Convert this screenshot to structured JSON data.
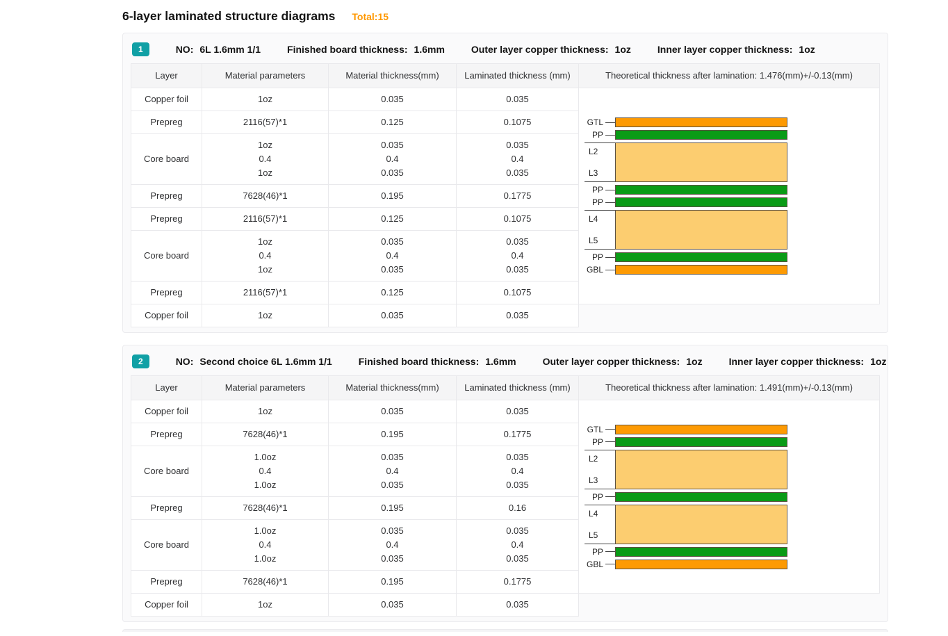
{
  "page": {
    "title": "6-layer laminated structure diagrams",
    "total_label": "Total:15"
  },
  "colors": {
    "accent_orange": "#ff9800",
    "badge_teal": "#10a0a5",
    "copper_bar": "#fd9a03",
    "prepreg_bar": "#0a9b16",
    "core_bar": "#fccd70"
  },
  "cards": [
    {
      "index": "1",
      "fields": [
        {
          "label": "NO:",
          "value": "6L 1.6mm 1/1"
        },
        {
          "label": "Finished board thickness:",
          "value": "1.6mm"
        },
        {
          "label": "Outer layer copper thickness:",
          "value": "1oz"
        },
        {
          "label": "Inner layer copper thickness:",
          "value": "1oz"
        }
      ],
      "columns": [
        "Layer",
        "Material parameters",
        "Material thickness(mm)",
        "Laminated thickness (mm)"
      ],
      "theoretical_header": "Theoretical thickness after lamination: 1.476(mm)+/-0.13(mm)",
      "rows": [
        {
          "layer": "Copper foil",
          "params": [
            "1oz"
          ],
          "material": [
            "0.035"
          ],
          "laminated": [
            "0.035"
          ]
        },
        {
          "layer": "Prepreg",
          "params": [
            "2116(57)*1"
          ],
          "material": [
            "0.125"
          ],
          "laminated": [
            "0.1075"
          ]
        },
        {
          "layer": "Core board",
          "params": [
            "1oz",
            "0.4",
            "1oz"
          ],
          "material": [
            "0.035",
            "0.4",
            "0.035"
          ],
          "laminated": [
            "0.035",
            "0.4",
            "0.035"
          ]
        },
        {
          "layer": "Prepreg",
          "params": [
            "7628(46)*1"
          ],
          "material": [
            "0.195"
          ],
          "laminated": [
            "0.1775"
          ]
        },
        {
          "layer": "Prepreg",
          "params": [
            "2116(57)*1"
          ],
          "material": [
            "0.125"
          ],
          "laminated": [
            "0.1075"
          ]
        },
        {
          "layer": "Core board",
          "params": [
            "1oz",
            "0.4",
            "1oz"
          ],
          "material": [
            "0.035",
            "0.4",
            "0.035"
          ],
          "laminated": [
            "0.035",
            "0.4",
            "0.035"
          ]
        },
        {
          "layer": "Prepreg",
          "params": [
            "2116(57)*1"
          ],
          "material": [
            "0.125"
          ],
          "laminated": [
            "0.1075"
          ]
        },
        {
          "layer": "Copper foil",
          "params": [
            "1oz"
          ],
          "material": [
            "0.035"
          ],
          "laminated": [
            "0.035"
          ]
        }
      ],
      "stack": [
        {
          "type": "copper",
          "label": "GTL"
        },
        {
          "type": "prepreg",
          "label": "PP"
        },
        {
          "type": "core",
          "top_label": "L2",
          "bottom_label": "L3"
        },
        {
          "type": "prepreg",
          "label": "PP"
        },
        {
          "type": "prepreg",
          "label": "PP"
        },
        {
          "type": "core",
          "top_label": "L4",
          "bottom_label": "L5"
        },
        {
          "type": "prepreg",
          "label": "PP"
        },
        {
          "type": "copper",
          "label": "GBL"
        }
      ]
    },
    {
      "index": "2",
      "fields": [
        {
          "label": "NO:",
          "value": "Second choice 6L 1.6mm 1/1"
        },
        {
          "label": "Finished board thickness:",
          "value": "1.6mm"
        },
        {
          "label": "Outer layer copper thickness:",
          "value": "1oz"
        },
        {
          "label": "Inner layer copper thickness:",
          "value": "1oz"
        }
      ],
      "columns": [
        "Layer",
        "Material parameters",
        "Material thickness(mm)",
        "Laminated thickness (mm)"
      ],
      "theoretical_header": "Theoretical thickness after lamination: 1.491(mm)+/-0.13(mm)",
      "rows": [
        {
          "layer": "Copper foil",
          "params": [
            "1oz"
          ],
          "material": [
            "0.035"
          ],
          "laminated": [
            "0.035"
          ]
        },
        {
          "layer": "Prepreg",
          "params": [
            "7628(46)*1"
          ],
          "material": [
            "0.195"
          ],
          "laminated": [
            "0.1775"
          ]
        },
        {
          "layer": "Core board",
          "params": [
            "1.0oz",
            "0.4",
            "1.0oz"
          ],
          "material": [
            "0.035",
            "0.4",
            "0.035"
          ],
          "laminated": [
            "0.035",
            "0.4",
            "0.035"
          ]
        },
        {
          "layer": "Prepreg",
          "params": [
            "7628(46)*1"
          ],
          "material": [
            "0.195"
          ],
          "laminated": [
            "0.16"
          ]
        },
        {
          "layer": "Core board",
          "params": [
            "1.0oz",
            "0.4",
            "1.0oz"
          ],
          "material": [
            "0.035",
            "0.4",
            "0.035"
          ],
          "laminated": [
            "0.035",
            "0.4",
            "0.035"
          ]
        },
        {
          "layer": "Prepreg",
          "params": [
            "7628(46)*1"
          ],
          "material": [
            "0.195"
          ],
          "laminated": [
            "0.1775"
          ]
        },
        {
          "layer": "Copper foil",
          "params": [
            "1oz"
          ],
          "material": [
            "0.035"
          ],
          "laminated": [
            "0.035"
          ]
        }
      ],
      "stack": [
        {
          "type": "copper",
          "label": "GTL"
        },
        {
          "type": "prepreg",
          "label": "PP"
        },
        {
          "type": "core",
          "top_label": "L2",
          "bottom_label": "L3"
        },
        {
          "type": "prepreg",
          "label": "PP"
        },
        {
          "type": "core",
          "top_label": "L4",
          "bottom_label": "L5"
        },
        {
          "type": "prepreg",
          "label": "PP"
        },
        {
          "type": "copper",
          "label": "GBL"
        }
      ]
    }
  ]
}
